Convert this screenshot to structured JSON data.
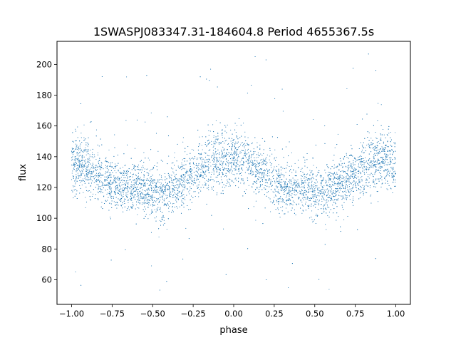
{
  "chart_data": {
    "type": "scatter",
    "title": "1SWASPJ083347.31-184604.8 Period 4655367.5s",
    "xlabel": "phase",
    "ylabel": "flux",
    "xlim": [
      -1.09,
      1.09
    ],
    "ylim": [
      44,
      215
    ],
    "xticks": [
      -1.0,
      -0.75,
      -0.5,
      -0.25,
      0.0,
      0.25,
      0.5,
      0.75,
      1.0
    ],
    "xtick_labels": [
      "−1.00",
      "−0.75",
      "−0.50",
      "−0.25",
      "0.00",
      "0.25",
      "0.50",
      "0.75",
      "1.00"
    ],
    "yticks": [
      60,
      80,
      100,
      120,
      140,
      160,
      180,
      200
    ],
    "ytick_labels": [
      "60",
      "80",
      "100",
      "120",
      "140",
      "160",
      "180",
      "200"
    ],
    "grid": false,
    "marker_color": "#1f77b4",
    "series": [
      {
        "phase": [
          -1.0,
          -0.95,
          -0.9,
          -0.85,
          -0.8,
          -0.75,
          -0.7,
          -0.65,
          -0.6,
          -0.55,
          -0.5,
          -0.45,
          -0.4,
          -0.35,
          -0.3,
          -0.25,
          -0.2,
          -0.15,
          -0.1,
          -0.05,
          0.0,
          0.05,
          0.1,
          0.15,
          0.2,
          0.25,
          0.3,
          0.35,
          0.4,
          0.45,
          0.5,
          0.55,
          0.6,
          0.65,
          0.7,
          0.75,
          0.8,
          0.85,
          0.9,
          0.95,
          1.0
        ],
        "flux_center": [
          132,
          135,
          133,
          130,
          127,
          124,
          120,
          119,
          121,
          119,
          117,
          115,
          118,
          122,
          125,
          129,
          133,
          136,
          139,
          137,
          138,
          136,
          134,
          132,
          128,
          124,
          120,
          119,
          121,
          119,
          117,
          115,
          118,
          122,
          125,
          129,
          133,
          136,
          139,
          137,
          132
        ],
        "flux_spread": [
          11,
          12,
          12,
          11,
          11,
          11,
          10,
          10,
          10,
          11,
          11,
          11,
          11,
          11,
          11,
          11,
          12,
          13,
          13,
          12,
          11,
          12,
          12,
          11,
          11,
          11,
          10,
          10,
          10,
          11,
          11,
          11,
          11,
          11,
          11,
          11,
          12,
          13,
          13,
          12,
          11
        ]
      }
    ]
  }
}
